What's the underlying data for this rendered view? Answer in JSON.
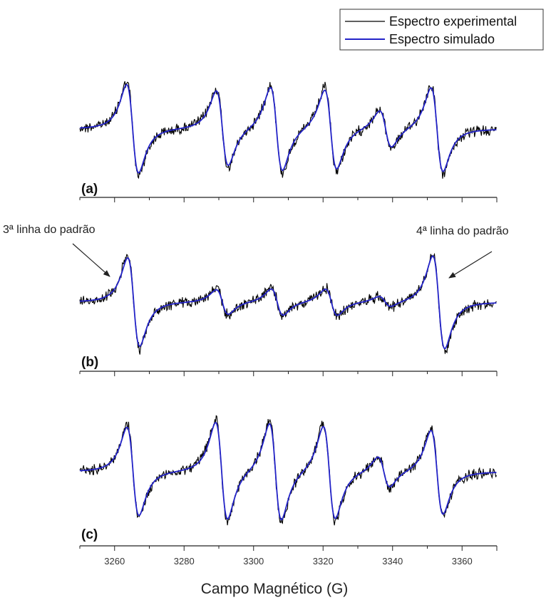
{
  "chart_data": {
    "type": "line",
    "xlabel": "Campo Magnético (G)",
    "xlim": [
      3250,
      3370
    ],
    "x_ticks": [
      3260,
      3280,
      3300,
      3320,
      3340,
      3360
    ],
    "grid": false,
    "legend_position": "top-right",
    "legend": [
      {
        "label": "Espectro experimental",
        "color": "#000000"
      },
      {
        "label": "Espectro simulado",
        "color": "#2323c8"
      }
    ],
    "panels": [
      {
        "tag": "(a)",
        "lines": [
          {
            "center": 3265.2,
            "amplitude": 1.0
          },
          {
            "center": 3291.0,
            "amplitude": 0.85
          },
          {
            "center": 3306.6,
            "amplitude": 0.95
          },
          {
            "center": 3322.2,
            "amplitude": 0.9
          },
          {
            "center": 3338.0,
            "amplitude": 0.42
          },
          {
            "center": 3352.8,
            "amplitude": 0.95
          }
        ]
      },
      {
        "tag": "(b)",
        "lines": [
          {
            "center": 3265.5,
            "amplitude": 1.0
          },
          {
            "center": 3291.0,
            "amplitude": 0.28
          },
          {
            "center": 3306.8,
            "amplitude": 0.3
          },
          {
            "center": 3322.4,
            "amplitude": 0.3
          },
          {
            "center": 3337.8,
            "amplitude": 0.12
          },
          {
            "center": 3353.3,
            "amplitude": 1.05
          }
        ]
      },
      {
        "tag": "(c)",
        "lines": [
          {
            "center": 3265.3,
            "amplitude": 1.0
          },
          {
            "center": 3290.8,
            "amplitude": 1.1
          },
          {
            "center": 3306.3,
            "amplitude": 1.1
          },
          {
            "center": 3321.8,
            "amplitude": 1.05
          },
          {
            "center": 3337.5,
            "amplitude": 0.35
          },
          {
            "center": 3352.8,
            "amplitude": 0.95
          }
        ]
      }
    ],
    "annotations": [
      {
        "text": "3ª linha do padrão",
        "points_to_x": 3264
      },
      {
        "text": "4ª linha do padrão",
        "points_to_x": 3355
      }
    ]
  }
}
